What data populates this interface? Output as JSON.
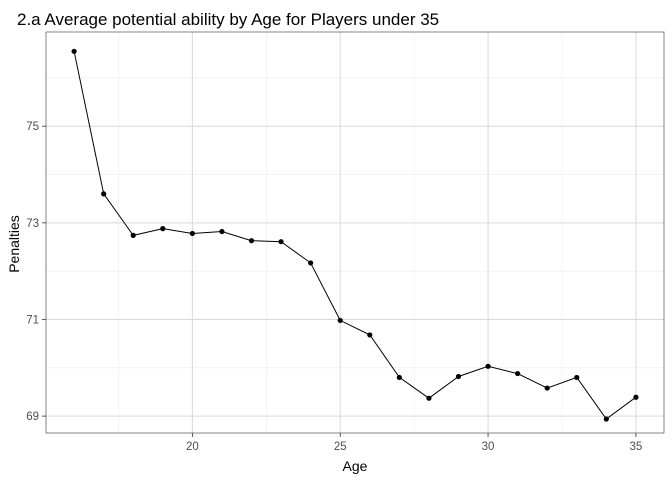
{
  "chart_data": {
    "type": "line",
    "title": "2.a Average potential ability by Age for Players under 35",
    "xlabel": "Age",
    "ylabel": "Penalties",
    "xlim": [
      15.05,
      35.95
    ],
    "ylim": [
      68.65,
      76.95
    ],
    "x_ticks": [
      20,
      25,
      30,
      35
    ],
    "y_ticks": [
      69,
      71,
      73,
      75
    ],
    "grid": true,
    "series": [
      {
        "x": [
          16,
          17,
          18,
          19,
          20,
          21,
          22,
          23,
          24,
          25,
          26,
          27,
          28,
          29,
          30,
          31,
          32,
          33,
          34,
          35
        ],
        "values": [
          76.55,
          73.6,
          72.74,
          72.88,
          72.78,
          72.82,
          72.63,
          72.61,
          72.17,
          70.98,
          70.68,
          69.8,
          69.37,
          69.82,
          70.03,
          69.88,
          69.58,
          69.8,
          68.94,
          69.39
        ]
      }
    ]
  }
}
